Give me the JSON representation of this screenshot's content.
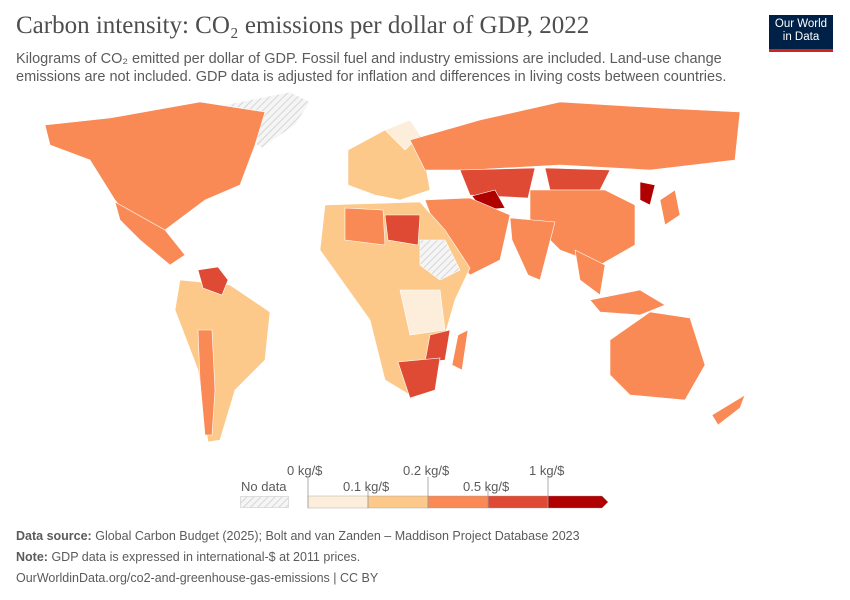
{
  "header": {
    "title": "Carbon intensity: CO₂ emissions per dollar of GDP, 2022",
    "subtitle": "Kilograms of CO₂ emitted per dollar of GDP. Fossil fuel and industry emissions are included. Land-use change emissions are not included. GDP data is adjusted for inflation and differences in living costs between countries.",
    "logo": "Our World in Data"
  },
  "legend": {
    "no_data": "No data",
    "bins": [
      {
        "label": "0 kg/$"
      },
      {
        "label": "0.1 kg/$"
      },
      {
        "label": "0.2 kg/$"
      },
      {
        "label": "0.5 kg/$"
      },
      {
        "label": "1 kg/$"
      }
    ],
    "colors": [
      "#fdeedc",
      "#fdc98a",
      "#f98a55",
      "#df4a35",
      "#b00000"
    ]
  },
  "footer": {
    "source_label": "Data source:",
    "source": "Global Carbon Budget (2025); Bolt and van Zanden – Maddison Project Database 2023",
    "note_label": "Note:",
    "note": "GDP data is expressed in international-$ at 2011 prices.",
    "url": "OurWorldinData.org/co2-and-greenhouse-gas-emissions | CC BY"
  }
}
